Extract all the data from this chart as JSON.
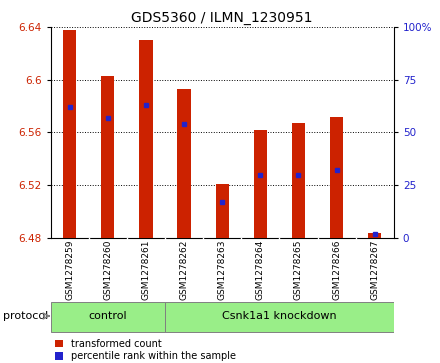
{
  "title": "GDS5360 / ILMN_1230951",
  "samples": [
    "GSM1278259",
    "GSM1278260",
    "GSM1278261",
    "GSM1278262",
    "GSM1278263",
    "GSM1278264",
    "GSM1278265",
    "GSM1278266",
    "GSM1278267"
  ],
  "bar_bottom": 6.48,
  "bar_tops": [
    6.638,
    6.603,
    6.63,
    6.593,
    6.521,
    6.562,
    6.567,
    6.572,
    6.484
  ],
  "percentile_values": [
    62,
    57,
    63,
    54,
    17,
    30,
    30,
    32,
    2
  ],
  "ylim": [
    6.48,
    6.64
  ],
  "yticks": [
    6.48,
    6.52,
    6.56,
    6.6,
    6.64
  ],
  "ytick_labels": [
    "6.48",
    "6.52",
    "6.56",
    "6.6",
    "6.64"
  ],
  "right_yticks": [
    0,
    25,
    50,
    75,
    100
  ],
  "right_ytick_labels": [
    "0",
    "25",
    "50",
    "75",
    "100%"
  ],
  "bar_color": "#CC2200",
  "dot_color": "#2222CC",
  "control_count": 3,
  "control_label": "control",
  "knockdown_label": "Csnk1a1 knockdown",
  "protocol_label": "protocol",
  "legend_bar_label": "transformed count",
  "legend_dot_label": "percentile rank within the sample",
  "group_color": "#99EE88",
  "xtick_bg_color": "#D8D8D8",
  "title_fontsize": 10,
  "tick_fontsize": 7.5,
  "label_fontsize": 8,
  "legend_fontsize": 7,
  "bar_width": 0.35
}
